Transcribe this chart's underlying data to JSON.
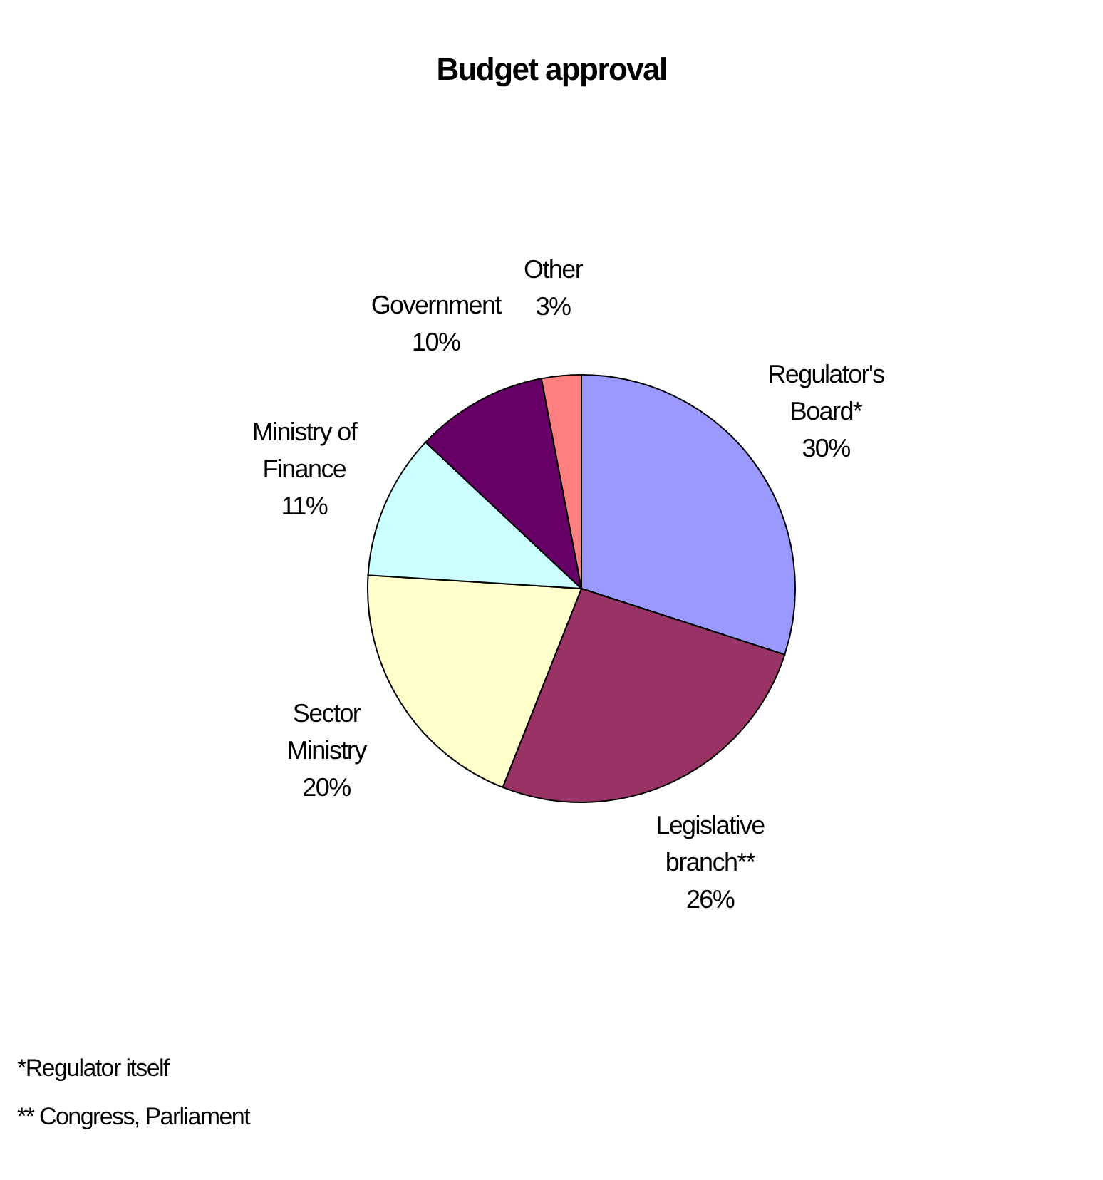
{
  "chart_data": {
    "type": "pie",
    "title": "Budget approval",
    "categories": [
      "Regulator's Board*",
      "Legislative branch**",
      "Sector Ministry",
      "Ministry of Finance",
      "Government",
      "Other"
    ],
    "values": [
      30,
      26,
      20,
      11,
      10,
      3
    ],
    "colors": [
      "#9999ff",
      "#993366",
      "#ffffcc",
      "#ccffff",
      "#660066",
      "#ff8080"
    ],
    "value_labels": [
      "30%",
      "26%",
      "20%",
      "11%",
      "10%",
      "3%"
    ],
    "annotations": [
      "*Regulator itself",
      "** Congress, Parliament"
    ]
  }
}
